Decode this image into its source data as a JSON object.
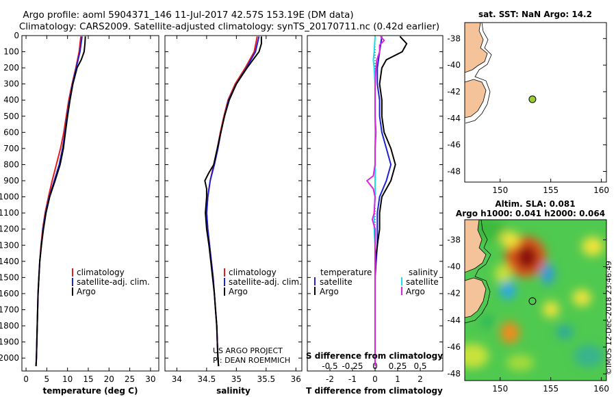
{
  "title": {
    "line1": "Argo profile: aoml 5904371_146 11-Jul-2017 42.57S 153.19E (DM data)",
    "line2": "Climatology: CARS2009. Satellite-adjusted climatology: synTS_20170711.nc (0.42d earlier)"
  },
  "colors": {
    "climatology": "#e41a1c",
    "satellite": "#1f1fd6",
    "argo": "#000000",
    "sal_satellite": "#18e0e8",
    "sal_argo": "#e020e0",
    "land": "#f5c39a",
    "float_dot": "#9acd32"
  },
  "watermark": {
    "line1": "US ARGO PROJECT",
    "line2": "PI: DEAN ROEMMICH",
    "imos": "©IMOS 12-Dec-2018 23:46:49"
  },
  "chart_data": [
    {
      "id": "temperature",
      "type": "line",
      "xlabel": "temperature (deg C)",
      "ylabel": "",
      "xlim": [
        -1,
        32
      ],
      "ylim": [
        2080,
        0
      ],
      "xticks": [
        0,
        5,
        10,
        15,
        20,
        25,
        30
      ],
      "yticks": [
        0,
        100,
        200,
        300,
        400,
        500,
        600,
        700,
        800,
        900,
        1000,
        1100,
        1200,
        1300,
        1400,
        1500,
        1600,
        1700,
        1800,
        1900,
        2000
      ],
      "legend": [
        "climatology",
        "satellite-adj. clim.",
        "Argo"
      ],
      "legend_position": "lower-right",
      "series": [
        {
          "name": "climatology",
          "depth": [
            5,
            100,
            200,
            300,
            400,
            500,
            600,
            700,
            800,
            900,
            1000,
            1100,
            1200,
            1300,
            1400,
            1500,
            1600,
            1700,
            1800,
            1900,
            2000,
            2050
          ],
          "values": [
            13.2,
            12.8,
            12.0,
            11.1,
            10.3,
            9.7,
            9.1,
            8.3,
            7.3,
            6.3,
            5.4,
            4.6,
            4.0,
            3.6,
            3.3,
            3.1,
            2.9,
            2.8,
            2.7,
            2.6,
            2.5,
            2.4
          ]
        },
        {
          "name": "satellite-adj. clim.",
          "depth": [
            5,
            100,
            200,
            300,
            400,
            500,
            600,
            700,
            800,
            900,
            1000,
            1100,
            1200,
            1300,
            1400,
            1500,
            1600,
            1700,
            1800,
            1900,
            2000,
            2050
          ],
          "values": [
            13.5,
            13.0,
            12.1,
            11.2,
            10.5,
            9.9,
            9.4,
            8.8,
            8.0,
            6.8,
            5.6,
            4.7,
            4.1,
            3.7,
            3.3,
            3.1,
            2.9,
            2.8,
            2.7,
            2.6,
            2.5,
            2.4
          ]
        },
        {
          "name": "Argo",
          "depth": [
            5,
            50,
            100,
            150,
            200,
            300,
            400,
            500,
            600,
            700,
            800,
            900,
            1000,
            1100,
            1200,
            1300,
            1400,
            1500,
            1600,
            1700,
            1800,
            1900,
            2000,
            2050
          ],
          "values": [
            14.3,
            14.2,
            14.0,
            13.3,
            12.3,
            11.3,
            10.6,
            10.0,
            9.5,
            9.0,
            8.2,
            7.0,
            5.7,
            4.8,
            4.2,
            3.7,
            3.3,
            3.1,
            2.9,
            2.8,
            2.7,
            2.6,
            2.5,
            2.4
          ]
        }
      ]
    },
    {
      "id": "salinity",
      "type": "line",
      "xlabel": "salinity",
      "ylabel": "",
      "xlim": [
        33.8,
        36.1
      ],
      "ylim": [
        2080,
        0
      ],
      "xticks": [
        34,
        34.5,
        35,
        35.5,
        36
      ],
      "legend": [
        "climatology",
        "satellite-adj. clim.",
        "Argo"
      ],
      "legend_position": "lower-right",
      "series": [
        {
          "name": "climatology",
          "depth": [
            5,
            100,
            200,
            300,
            400,
            500,
            600,
            700,
            800,
            900,
            1000,
            1100,
            1200,
            1300,
            1400,
            1500,
            1600,
            1700,
            1800,
            1900,
            2000,
            2050
          ],
          "values": [
            35.35,
            35.3,
            35.15,
            34.98,
            34.86,
            34.79,
            34.73,
            34.68,
            34.62,
            34.56,
            34.52,
            34.5,
            34.52,
            34.55,
            34.58,
            34.61,
            34.63,
            34.65,
            34.67,
            34.68,
            34.69,
            34.7
          ]
        },
        {
          "name": "satellite-adj. clim.",
          "depth": [
            5,
            100,
            200,
            300,
            400,
            500,
            600,
            700,
            800,
            900,
            1000,
            1100,
            1200,
            1300,
            1400,
            1500,
            1600,
            1700,
            1800,
            1900,
            2000,
            2050
          ],
          "values": [
            35.38,
            35.32,
            35.17,
            35.0,
            34.87,
            34.8,
            34.74,
            34.69,
            34.63,
            34.56,
            34.52,
            34.5,
            34.52,
            34.55,
            34.58,
            34.61,
            34.63,
            34.65,
            34.67,
            34.68,
            34.69,
            34.7
          ]
        },
        {
          "name": "Argo",
          "depth": [
            5,
            50,
            100,
            150,
            200,
            300,
            400,
            500,
            600,
            700,
            800,
            850,
            900,
            950,
            1000,
            1100,
            1200,
            1300,
            1400,
            1500,
            1600,
            1700,
            1800,
            1900,
            2000,
            2050
          ],
          "values": [
            35.42,
            35.42,
            35.38,
            35.28,
            35.18,
            35.0,
            34.88,
            34.8,
            34.74,
            34.68,
            34.62,
            34.54,
            34.47,
            34.5,
            34.5,
            34.48,
            34.5,
            34.54,
            34.57,
            34.6,
            34.63,
            34.65,
            34.67,
            34.68,
            34.69,
            34.7
          ]
        }
      ]
    },
    {
      "id": "differences",
      "type": "line",
      "xlabel": "T difference from climatology",
      "xlabel2": "S difference from climatology",
      "xlim": [
        -3,
        3
      ],
      "ylim": [
        2080,
        0
      ],
      "xticks": [
        -2,
        -1,
        0,
        1,
        2
      ],
      "xticks2": [
        -0.5,
        -0.25,
        0,
        0.25,
        0.5
      ],
      "xticks2_labels": [
        "-0.5",
        "-0.25",
        "0",
        "0.25",
        "0.5"
      ],
      "legend_left_title": "temperature",
      "legend_right_title": "salinity",
      "legend_left": [
        "satellite",
        "Argo"
      ],
      "legend_right": [
        "satellite",
        "Argo"
      ],
      "series": [
        {
          "name": "T satellite",
          "depth": [
            5,
            100,
            200,
            300,
            400,
            500,
            600,
            700,
            800,
            900,
            1000,
            1100,
            1200,
            1300,
            1400,
            1500,
            1600,
            1700,
            1800,
            1900,
            2000,
            2050
          ],
          "values": [
            0.3,
            0.2,
            0.1,
            0.1,
            0.2,
            0.2,
            0.3,
            0.5,
            0.7,
            0.5,
            0.2,
            0.1,
            0.1,
            0.1,
            0.05,
            0.0,
            0.0,
            0.0,
            0.0,
            0.0,
            0.0,
            0.0
          ]
        },
        {
          "name": "T Argo",
          "depth": [
            5,
            50,
            100,
            150,
            200,
            300,
            400,
            500,
            600,
            700,
            800,
            900,
            1000,
            1100,
            1200,
            1300,
            1400,
            1500,
            1600,
            1700,
            1800,
            1900,
            2000,
            2050
          ],
          "values": [
            1.1,
            1.4,
            1.2,
            0.5,
            0.3,
            0.2,
            0.3,
            0.3,
            0.4,
            0.7,
            0.9,
            0.7,
            0.3,
            0.2,
            0.2,
            0.1,
            0.0,
            0.0,
            0.0,
            0.0,
            0.0,
            0.0,
            0.0,
            0.0
          ]
        },
        {
          "name": "S satellite",
          "depth": [
            5,
            100,
            150,
            200,
            300,
            400,
            500,
            600,
            700,
            800,
            900,
            1000,
            1100,
            1200,
            1300,
            1400,
            1500,
            1600,
            1700,
            1800,
            1900,
            2000,
            2050
          ],
          "values": [
            0.0,
            -0.01,
            -0.02,
            -0.01,
            0.0,
            0.0,
            0.0,
            0.0,
            0.0,
            0.0,
            0.0,
            0.0,
            -0.01,
            -0.01,
            0.0,
            0.0,
            0.0,
            0.0,
            0.0,
            0.0,
            0.0,
            0.0,
            0.0
          ]
        },
        {
          "name": "S Argo",
          "depth": [
            5,
            30,
            60,
            100,
            150,
            200,
            300,
            400,
            500,
            600,
            700,
            800,
            870,
            900,
            950,
            1000,
            1100,
            1140,
            1200,
            1300,
            1400,
            1500,
            1600,
            1700,
            1800,
            1900,
            2000,
            2050
          ],
          "values": [
            0.06,
            0.1,
            0.05,
            0.05,
            0.02,
            0.01,
            0.0,
            0.0,
            0.0,
            0.01,
            0.0,
            0.0,
            -0.02,
            -0.09,
            -0.02,
            0.0,
            -0.01,
            -0.03,
            0.0,
            0.0,
            0.0,
            0.0,
            0.0,
            0.0,
            0.0,
            0.0,
            0.0,
            0.0
          ]
        }
      ]
    },
    {
      "id": "sst-map",
      "type": "scatter",
      "title": "sat. SST: NaN Argo: 14.2",
      "xlim": [
        146.5,
        160.5
      ],
      "ylim": [
        -48.8,
        -36.8
      ],
      "xticks": [
        150,
        155,
        160
      ],
      "yticks": [
        -38,
        -40,
        -42,
        -44,
        -46,
        -48
      ],
      "yticks_labels": [
        "-38",
        "-40",
        "-42",
        "-44",
        "-46",
        "-48"
      ],
      "float_position": {
        "lon": 153.19,
        "lat": -42.57
      }
    },
    {
      "id": "sla-map",
      "type": "heatmap",
      "title_line1": "Altim. SLA: 0.081",
      "title_line2": "Argo h1000: 0.041 h2000: 0.064",
      "xlim": [
        146.5,
        160.5
      ],
      "ylim": [
        -48.5,
        -36.5
      ],
      "xticks": [
        150,
        155,
        160
      ],
      "yticks": [
        -38,
        -40,
        -42,
        -44,
        -46,
        -48
      ],
      "yticks_labels": [
        "-38",
        "-40",
        "-42",
        "-44",
        "-46",
        "-48"
      ],
      "float_position": {
        "lon": 153.19,
        "lat": -42.57
      }
    }
  ]
}
